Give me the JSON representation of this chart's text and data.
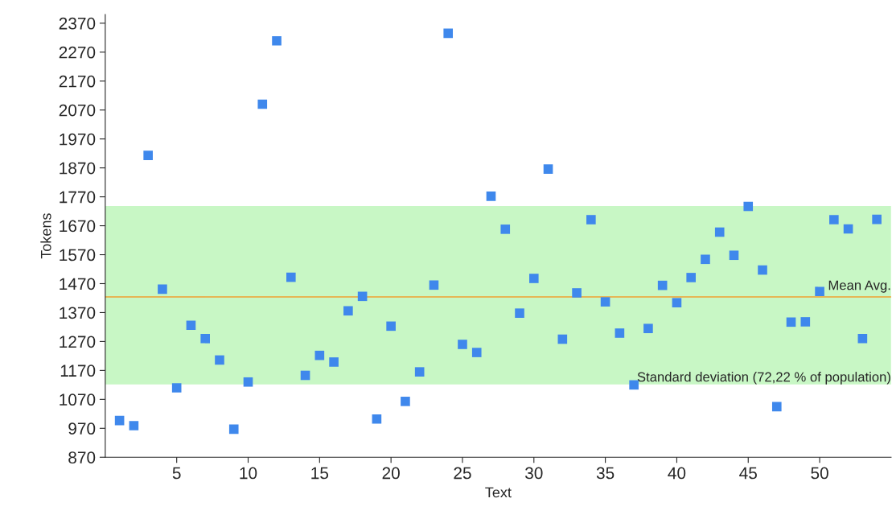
{
  "chart_data": {
    "type": "scatter",
    "xlabel": "Text",
    "ylabel": "Tokens",
    "x": [
      1,
      2,
      3,
      4,
      5,
      6,
      7,
      8,
      9,
      10,
      11,
      12,
      13,
      14,
      15,
      16,
      17,
      18,
      19,
      20,
      21,
      22,
      23,
      24,
      25,
      26,
      27,
      28,
      29,
      30,
      31,
      32,
      33,
      34,
      35,
      36,
      37,
      38,
      39,
      40,
      41,
      42,
      43,
      44,
      45,
      46,
      47,
      48,
      49,
      50,
      51,
      52,
      53,
      54
    ],
    "series": [
      {
        "color": "#3f88ec",
        "values": [
          997,
          979,
          1913,
          1451,
          1110,
          1326,
          1280,
          1206,
          967,
          1130,
          2090,
          2309,
          1492,
          1153,
          1222,
          1199,
          1376,
          1426,
          1002,
          1323,
          1063,
          1165,
          1465,
          2335,
          1260,
          1232,
          1772,
          1658,
          1368,
          1488,
          1866,
          1278,
          1438,
          1691,
          1407,
          1299,
          1120,
          1315,
          1464,
          1404,
          1491,
          1554,
          1648,
          1568,
          1737,
          1517,
          1045,
          1337,
          1338,
          1443,
          1691,
          1659,
          1280,
          1692
        ]
      }
    ],
    "marker": "square",
    "xlim": [
      0,
      55
    ],
    "ylim": [
      870,
      2400
    ],
    "xticks": [
      5,
      10,
      15,
      20,
      25,
      30,
      35,
      40,
      45,
      50
    ],
    "yticks": [
      870,
      970,
      1070,
      1170,
      1270,
      1370,
      1470,
      1570,
      1670,
      1770,
      1870,
      1970,
      2070,
      2170,
      2270,
      2370
    ],
    "grid": false,
    "legend": false,
    "ref_lines": [
      {
        "axis": "y",
        "value": 1424,
        "label": "Mean Avg.",
        "color": "#f0a030",
        "line_style": "solid"
      }
    ],
    "bands": [
      {
        "axis": "y",
        "from": 1122,
        "to": 1738,
        "label": "Standard deviation (72,22 % of population)",
        "color": "#c8f7c5"
      }
    ]
  }
}
